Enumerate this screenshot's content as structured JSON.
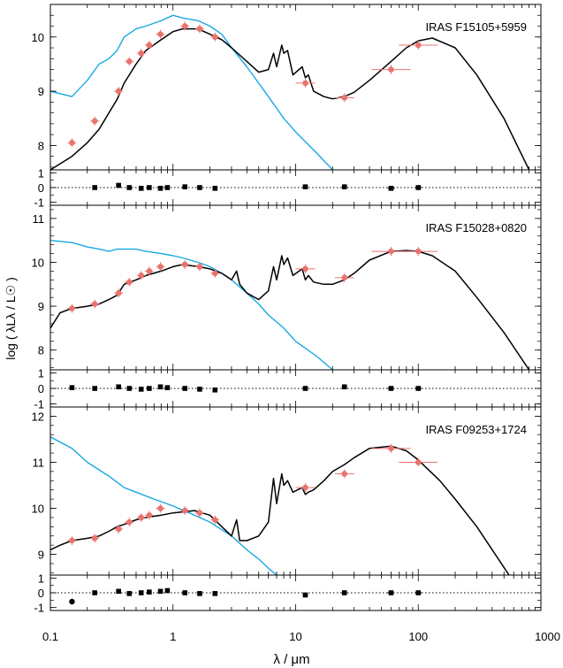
{
  "figure": {
    "ylabel": "log ( λLλ / L☉ )",
    "xlabel": "λ / μm",
    "x_scale": "log",
    "x_ticks": [
      0.1,
      1,
      10,
      100,
      1000
    ],
    "x_tick_labels": [
      "0.1",
      "1",
      "10",
      "100",
      "1000"
    ]
  },
  "colors": {
    "stellar_model": "#17a9e3",
    "total_model": "#000000",
    "photometry": "#e8736e",
    "residuals": "#000000"
  },
  "chart_data": [
    {
      "type": "line",
      "title": "IRAS F15105+5959",
      "ylim": [
        7.55,
        10.6
      ],
      "y_ticks": [
        8,
        9,
        10
      ],
      "series": [
        {
          "values_x": [
            0.1,
            0.15,
            0.2,
            0.25,
            0.3,
            0.35,
            0.4,
            0.5,
            0.6,
            0.8,
            1.0,
            1.2,
            1.6,
            2.0,
            2.5,
            3.0,
            4.0,
            5.0,
            6.0,
            8.0,
            10,
            15,
            20
          ],
          "values_y": [
            9.0,
            8.9,
            9.2,
            9.5,
            9.6,
            9.75,
            10.0,
            10.15,
            10.2,
            10.3,
            10.4,
            10.35,
            10.3,
            10.2,
            10.05,
            9.8,
            9.45,
            9.15,
            8.9,
            8.5,
            8.25,
            7.85,
            7.55
          ]
        },
        {
          "values_x": [
            0.1,
            0.15,
            0.2,
            0.25,
            0.3,
            0.35,
            0.4,
            0.5,
            0.6,
            0.8,
            1.0,
            1.2,
            1.6,
            2.0,
            2.5,
            3.0,
            4.0,
            5.0,
            6.0,
            6.6,
            7.0,
            7.7,
            8.0,
            8.6,
            9.5,
            11.3,
            12.0,
            12.7,
            14,
            17,
            20,
            25,
            30,
            40,
            60,
            80,
            100,
            130,
            200,
            300,
            500,
            800
          ],
          "values_y": [
            7.55,
            7.8,
            8.05,
            8.3,
            8.6,
            8.85,
            9.15,
            9.5,
            9.75,
            9.95,
            10.1,
            10.15,
            10.15,
            10.05,
            9.95,
            9.8,
            9.55,
            9.35,
            9.4,
            9.7,
            9.45,
            9.85,
            9.7,
            9.75,
            9.3,
            9.45,
            9.25,
            9.3,
            9.0,
            8.9,
            8.86,
            8.9,
            8.98,
            9.2,
            9.55,
            9.8,
            9.93,
            9.98,
            9.8,
            9.3,
            8.5,
            7.55
          ]
        }
      ],
      "photometry": {
        "x": [
          0.15,
          0.23,
          0.36,
          0.44,
          0.55,
          0.64,
          0.79,
          1.25,
          1.65,
          2.2,
          12,
          25,
          60,
          100
        ],
        "y": [
          8.05,
          8.45,
          9.0,
          9.55,
          9.7,
          9.85,
          10.05,
          10.2,
          10.15,
          10.0,
          9.15,
          8.88,
          9.4,
          9.85
        ]
      },
      "residuals": {
        "ylim": [
          -1.2,
          1.2
        ],
        "y_ticks": [
          1,
          0,
          -1
        ],
        "x": [
          0.23,
          0.36,
          0.44,
          0.55,
          0.64,
          0.79,
          0.9,
          1.25,
          1.65,
          2.2,
          12,
          25,
          60,
          100
        ],
        "y": [
          0.0,
          0.15,
          0.0,
          -0.05,
          0.0,
          -0.05,
          0.0,
          0.05,
          0.0,
          -0.05,
          0.05,
          0.05,
          -0.05,
          0.0
        ]
      }
    },
    {
      "type": "line",
      "title": "IRAS F15028+0820",
      "ylim": [
        7.55,
        11.3
      ],
      "y_ticks": [
        8,
        9,
        10,
        11
      ],
      "series": [
        {
          "values_x": [
            0.1,
            0.15,
            0.2,
            0.25,
            0.3,
            0.35,
            0.4,
            0.5,
            0.6,
            0.8,
            1.0,
            1.2,
            1.6,
            2.0,
            2.5,
            3.0,
            4.0,
            5.0,
            6.0,
            8.0,
            10,
            15,
            20
          ],
          "values_y": [
            10.5,
            10.45,
            10.35,
            10.3,
            10.25,
            10.3,
            10.3,
            10.3,
            10.25,
            10.2,
            10.15,
            10.1,
            10.0,
            9.9,
            9.75,
            9.6,
            9.3,
            9.05,
            8.8,
            8.5,
            8.2,
            7.85,
            7.55
          ]
        },
        {
          "values_x": [
            0.1,
            0.12,
            0.15,
            0.2,
            0.25,
            0.3,
            0.35,
            0.4,
            0.5,
            0.6,
            0.8,
            1.0,
            1.2,
            1.6,
            2.0,
            2.5,
            3.0,
            3.3,
            3.5,
            4.0,
            5.0,
            6.0,
            6.6,
            7.0,
            7.7,
            8.0,
            8.6,
            9.5,
            11.3,
            12.0,
            12.7,
            14,
            17,
            20,
            25,
            30,
            40,
            60,
            80,
            100,
            130,
            200,
            300,
            500,
            800
          ],
          "values_y": [
            8.5,
            8.85,
            8.95,
            9.0,
            9.05,
            9.15,
            9.25,
            9.5,
            9.6,
            9.7,
            9.8,
            9.9,
            9.95,
            9.9,
            9.85,
            9.75,
            9.6,
            9.8,
            9.5,
            9.3,
            9.15,
            9.35,
            9.9,
            9.6,
            10.15,
            9.95,
            10.1,
            9.7,
            9.85,
            9.6,
            9.7,
            9.55,
            9.5,
            9.5,
            9.6,
            9.75,
            10.05,
            10.25,
            10.27,
            10.25,
            10.15,
            9.8,
            9.2,
            8.4,
            7.55
          ]
        }
      ],
      "photometry": {
        "x": [
          0.15,
          0.23,
          0.36,
          0.44,
          0.55,
          0.64,
          0.79,
          1.25,
          1.65,
          2.2,
          12,
          25,
          60,
          100
        ],
        "y": [
          8.95,
          9.05,
          9.3,
          9.55,
          9.7,
          9.8,
          9.9,
          9.95,
          9.9,
          9.75,
          9.85,
          9.65,
          10.25,
          10.25
        ]
      },
      "residuals": {
        "ylim": [
          -1.2,
          1.2
        ],
        "y_ticks": [
          1,
          0,
          -1
        ],
        "x": [
          0.15,
          0.23,
          0.36,
          0.44,
          0.55,
          0.64,
          0.79,
          0.9,
          1.25,
          1.65,
          2.2,
          12,
          25,
          60,
          100
        ],
        "y": [
          0.05,
          0.0,
          0.1,
          0.0,
          -0.05,
          0.0,
          0.1,
          0.05,
          0.0,
          -0.05,
          -0.1,
          0.0,
          0.1,
          0.0,
          0.0
        ]
      }
    },
    {
      "type": "line",
      "title": "IRAS F09253+1724",
      "ylim": [
        8.55,
        12.2
      ],
      "y_ticks": [
        9,
        10,
        11,
        12
      ],
      "series": [
        {
          "values_x": [
            0.1,
            0.15,
            0.2,
            0.3,
            0.4,
            0.5,
            0.7,
            1.0,
            1.5,
            2.0,
            3.0,
            4.0,
            5.0,
            6.0,
            7.0
          ],
          "values_y": [
            11.55,
            11.3,
            11.0,
            10.7,
            10.45,
            10.35,
            10.2,
            10.05,
            9.85,
            9.7,
            9.4,
            9.1,
            8.9,
            8.7,
            8.55
          ]
        },
        {
          "values_x": [
            0.1,
            0.12,
            0.15,
            0.2,
            0.25,
            0.3,
            0.35,
            0.4,
            0.5,
            0.6,
            0.8,
            1.0,
            1.5,
            2.0,
            2.5,
            3.0,
            3.3,
            3.5,
            4.0,
            5.0,
            6.0,
            6.6,
            7.0,
            7.7,
            8.0,
            8.6,
            9.5,
            11.3,
            12.0,
            12.7,
            14,
            17,
            20,
            25,
            30,
            40,
            60,
            80,
            100,
            150,
            200,
            300,
            550
          ],
          "values_y": [
            9.1,
            9.2,
            9.3,
            9.35,
            9.4,
            9.5,
            9.6,
            9.65,
            9.75,
            9.8,
            9.85,
            9.9,
            9.95,
            9.85,
            9.6,
            9.4,
            9.75,
            9.3,
            9.3,
            9.4,
            9.7,
            10.65,
            10.1,
            10.75,
            10.5,
            10.6,
            10.35,
            10.45,
            10.3,
            10.35,
            10.4,
            10.6,
            10.8,
            10.95,
            11.1,
            11.3,
            11.35,
            11.25,
            11.05,
            10.6,
            10.2,
            9.6,
            8.55
          ]
        }
      ],
      "photometry": {
        "x": [
          0.15,
          0.23,
          0.36,
          0.44,
          0.55,
          0.64,
          0.79,
          1.25,
          1.65,
          2.2,
          12,
          25,
          60,
          100
        ],
        "y": [
          9.3,
          9.35,
          9.55,
          9.7,
          9.8,
          9.85,
          10.0,
          9.95,
          9.9,
          9.75,
          10.45,
          10.75,
          11.3,
          11.0
        ]
      },
      "residuals": {
        "ylim": [
          -1.2,
          1.2
        ],
        "y_ticks": [
          1,
          0,
          -1
        ],
        "x": [
          0.15,
          0.23,
          0.36,
          0.44,
          0.55,
          0.64,
          0.79,
          0.9,
          1.25,
          1.65,
          2.2,
          12,
          25,
          60,
          100
        ],
        "y": [
          -0.6,
          0.0,
          0.1,
          -0.05,
          0.0,
          0.05,
          0.1,
          0.15,
          0.0,
          -0.05,
          -0.05,
          -0.15,
          0.0,
          0.0,
          0.0
        ]
      }
    }
  ]
}
